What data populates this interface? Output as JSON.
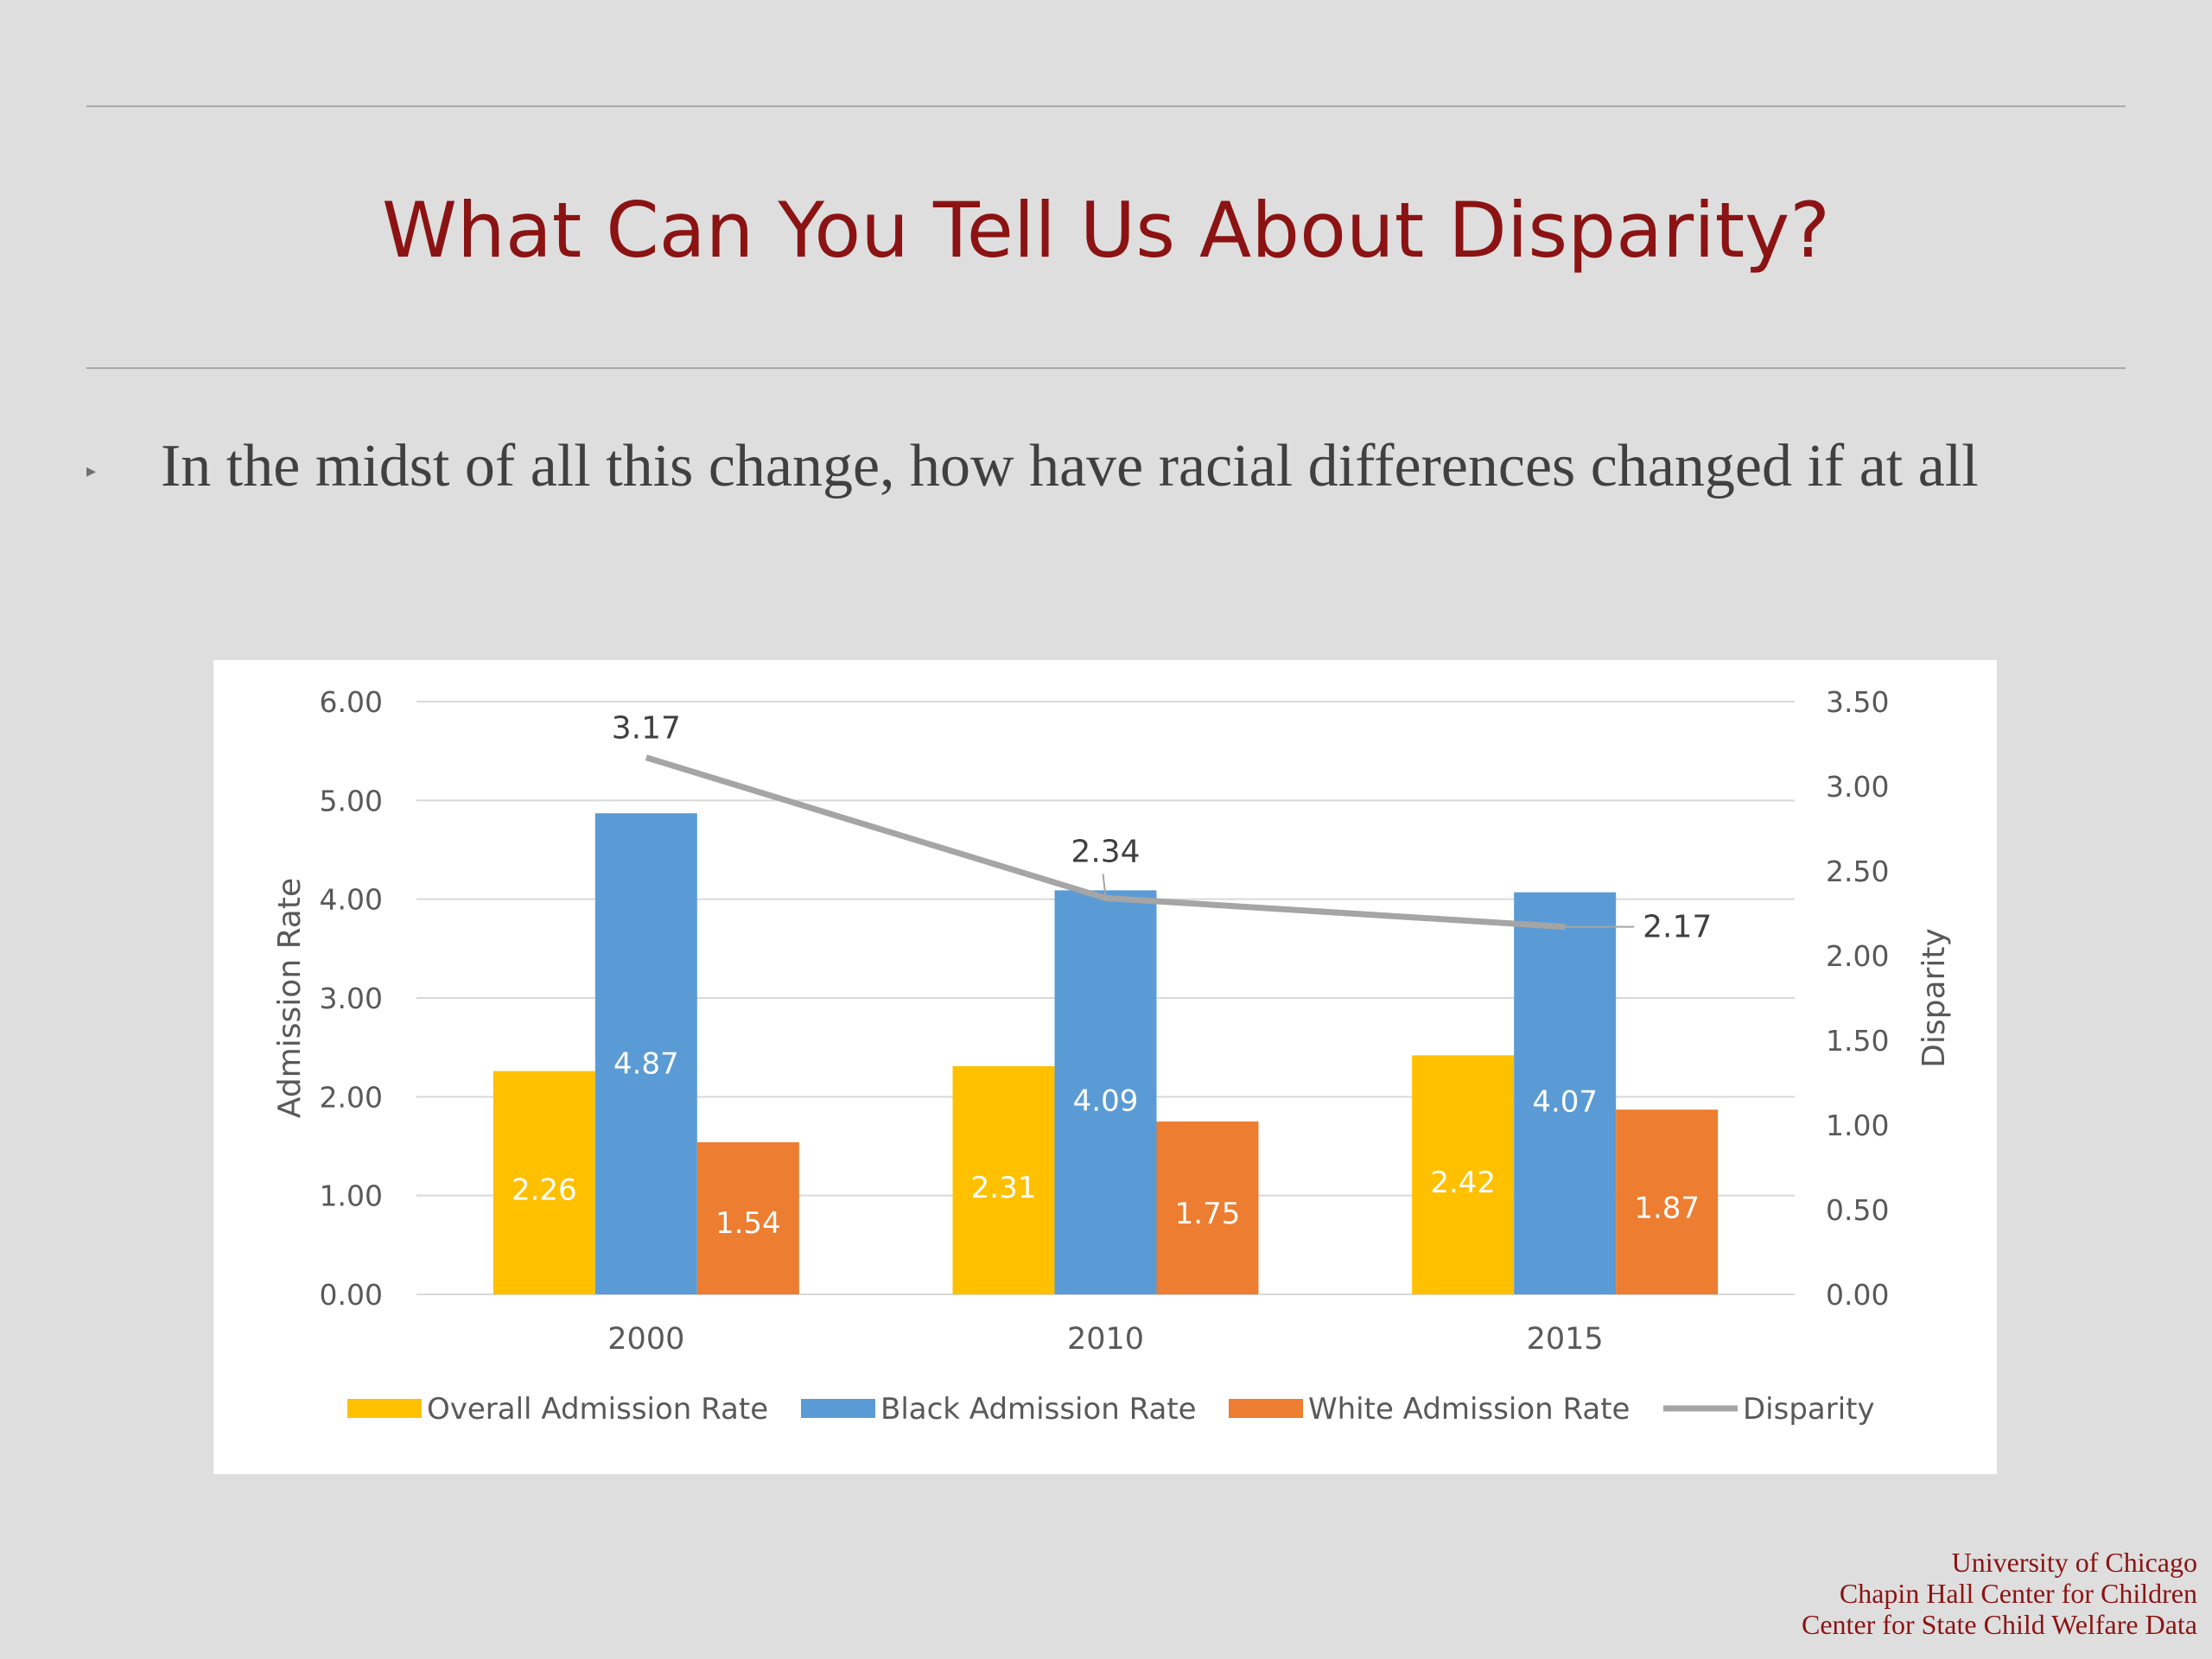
{
  "slide": {
    "title": "What Can You Tell Us About Disparity?",
    "bullet": "In the midst of all this change, how have racial differences changed if at all",
    "bullet_icon": "triangle-right-icon"
  },
  "footer": {
    "line1": "University of Chicago",
    "line2": "Chapin Hall Center for Children",
    "line3": "Center for State Child Welfare Data"
  },
  "colors": {
    "title": "#8b1313",
    "overall": "#ffc000",
    "black": "#5b9bd5",
    "white": "#ed7d31",
    "disparity": "#a5a5a5"
  },
  "chart_data": {
    "type": "bar",
    "categories": [
      "2000",
      "2010",
      "2015"
    ],
    "series": [
      {
        "name": "Overall Admission Rate",
        "values": [
          2.26,
          2.31,
          2.42
        ],
        "color": "#ffc000",
        "axis": "left"
      },
      {
        "name": "Black Admission Rate",
        "values": [
          4.87,
          4.09,
          4.07
        ],
        "color": "#5b9bd5",
        "axis": "left"
      },
      {
        "name": "White Admission Rate",
        "values": [
          1.54,
          1.75,
          1.87
        ],
        "color": "#ed7d31",
        "axis": "left"
      }
    ],
    "line_series": {
      "name": "Disparity",
      "values": [
        3.17,
        2.34,
        2.17
      ],
      "color": "#a5a5a5",
      "axis": "right"
    },
    "ylabel": "Admission Rate",
    "y2label": "Disparity",
    "ylim": [
      0,
      6
    ],
    "y2lim": [
      0,
      3.5
    ],
    "yticks": [
      "0.00",
      "1.00",
      "2.00",
      "3.00",
      "4.00",
      "5.00",
      "6.00"
    ],
    "y2ticks": [
      "0.00",
      "0.50",
      "1.00",
      "1.50",
      "2.00",
      "2.50",
      "3.00",
      "3.50"
    ],
    "bar_labels": [
      [
        "2.26",
        "2.31",
        "2.42"
      ],
      [
        "4.87",
        "4.09",
        "4.07"
      ],
      [
        "1.54",
        "1.75",
        "1.87"
      ]
    ],
    "line_labels": [
      "3.17",
      "2.34",
      "2.17"
    ],
    "grid": true,
    "legend_position": "bottom"
  }
}
